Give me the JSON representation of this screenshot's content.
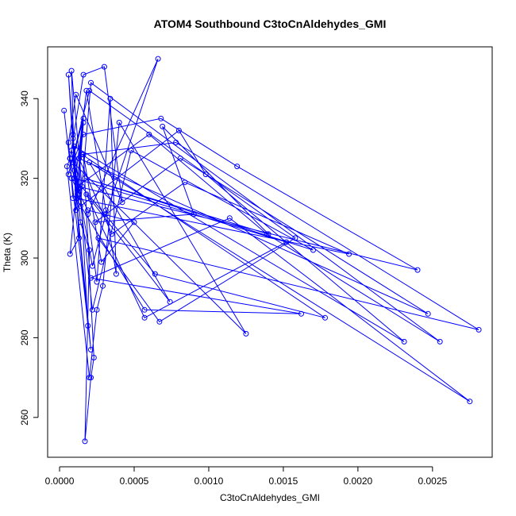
{
  "chart_data": {
    "type": "line",
    "title": "ATOM4 Southbound C3toCnAldehydes_GMI",
    "xlabel": "C3toCnAldehydes_GMI",
    "ylabel": "Theta (K)",
    "xlim": [
      -8e-05,
      0.0029
    ],
    "ylim": [
      250,
      353
    ],
    "xticks": [
      0.0,
      0.0005,
      0.001,
      0.0015,
      0.002,
      0.0025
    ],
    "xtick_labels": [
      "0.0000",
      "0.0005",
      "0.0010",
      "0.0015",
      "0.0020",
      "0.0025"
    ],
    "yticks": [
      260,
      280,
      300,
      320,
      340
    ],
    "ytick_labels": [
      "260",
      "280",
      "300",
      "320",
      "340"
    ],
    "grid": false,
    "marker": "open-circle",
    "series_color": "#0000ff",
    "series": [
      {
        "x": [
          7e-05,
          0.00012,
          6e-05,
          0.0001,
          8e-05,
          0.00015,
          0.00011,
          9e-05,
          0.00013,
          7e-05,
          0.00016,
          0.00012,
          8e-05,
          0.00022,
          0.00031,
          0.00066,
          0.00019,
          0.00025,
          0.00034,
          0.00038,
          0.00031,
          0.00018,
          0.00011,
          9e-05,
          0.00014,
          0.0002,
          0.00017,
          0.00021,
          0.00023,
          0.00016,
          0.00028,
          0.0005,
          0.00019,
          0.00012,
          8e-05,
          7e-05,
          0.00016,
          0.0003,
          0.00042,
          0.00011,
          6e-05,
          9e-05,
          7e-05,
          5e-05,
          0.0002,
          0.00025,
          0.00029,
          0.0004,
          0.00125,
          9e-05,
          0.00016,
          0.00068,
          0.00119,
          0.0024,
          0.00012,
          0.0006,
          0.00139,
          0.00255,
          0.00021,
          0.00014,
          0.0008,
          0.00098,
          0.00231,
          0.0001,
          0.00022,
          0.00048,
          0.0017,
          0.00017,
          0.0014,
          0.00069,
          0.0009,
          0.00024,
          0.00081,
          0.00247,
          0.00013,
          0.00035,
          0.00084,
          0.00194,
          0.00011,
          0.00057,
          0.00162,
          0.00021,
          0.00114,
          0.00275,
          0.0002,
          0.00074,
          0.00018,
          0.00057,
          0.00152,
          0.0001,
          0.00064,
          0.00178,
          0.00015,
          0.00078,
          0.00281,
          0.00026,
          0.00067,
          0.00158,
          0.0002,
          6e-05,
          0.00016,
          0.00013,
          0.00019,
          0.0001,
          0.00021,
          3e-05
        ],
        "y": [
          325,
          316,
          346,
          322,
          347,
          318,
          312,
          331,
          305,
          301,
          334,
          315,
          327,
          298,
          311,
          350,
          311,
          294,
          340,
          296,
          312,
          342,
          321,
          330,
          309,
          302,
          254,
          270,
          275,
          326,
          299,
          309,
          312,
          317,
          320,
          325,
          346,
          348,
          314,
          341,
          329,
          315,
          325,
          323,
          270,
          287,
          293,
          334,
          281,
          324,
          331,
          335,
          323,
          297,
          318,
          331,
          306,
          279,
          344,
          313,
          332,
          321,
          279,
          328,
          287,
          327,
          302,
          320,
          306,
          333,
          311,
          309,
          325,
          286,
          325,
          306,
          319,
          301,
          315,
          287,
          286,
          295,
          310,
          264,
          324,
          289,
          316,
          285,
          304,
          320,
          296,
          285,
          326,
          329,
          282,
          305,
          284,
          305,
          342,
          321,
          335,
          325,
          283,
          320,
          277,
          337
        ]
      }
    ]
  }
}
